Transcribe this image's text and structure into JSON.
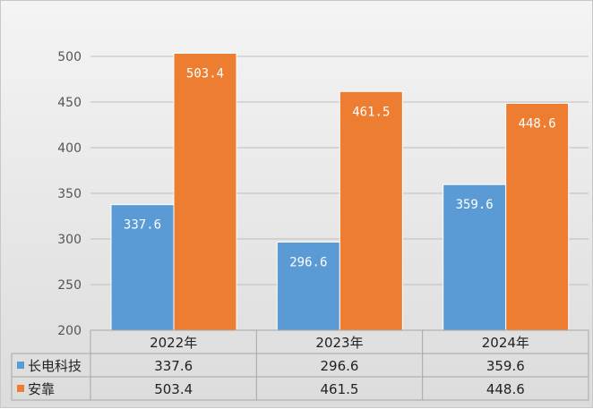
{
  "chart_data": {
    "type": "bar",
    "categories": [
      "2022年",
      "2023年",
      "2024年"
    ],
    "series": [
      {
        "name": "长电科技",
        "values": [
          337.6,
          296.6,
          359.6
        ],
        "color": "#5b9bd5"
      },
      {
        "name": "安靠",
        "values": [
          503.4,
          461.5,
          448.6
        ],
        "color": "#ed7d31"
      }
    ],
    "ylim": [
      200,
      500
    ],
    "yticks": [
      200,
      250,
      300,
      350,
      400,
      450,
      500
    ],
    "grid": true,
    "legend": "data-table-left",
    "data_labels": true,
    "title": "",
    "xlabel": "",
    "ylabel": ""
  }
}
